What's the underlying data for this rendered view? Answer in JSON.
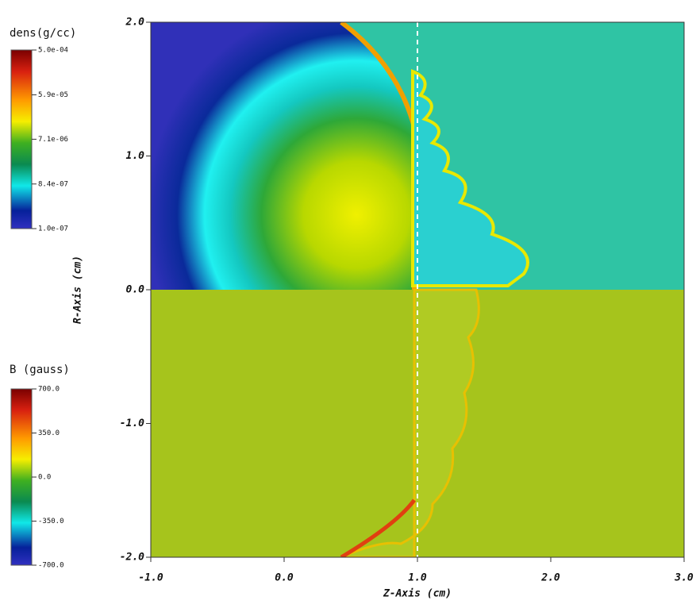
{
  "chart_data": {
    "type": "heatmap",
    "x_label": "Z-Axis (cm)",
    "y_label": "R-Axis (cm)",
    "xlim": [
      -1,
      3
    ],
    "ylim": [
      -2,
      2
    ],
    "xticks": [
      {
        "value": -1,
        "label": "-1.0"
      },
      {
        "value": 0,
        "label": "0.0"
      },
      {
        "value": 1,
        "label": "1.0"
      },
      {
        "value": 2,
        "label": "2.0"
      },
      {
        "value": 3,
        "label": "3.0"
      }
    ],
    "yticks": [
      {
        "value": -2,
        "label": "-2.0"
      },
      {
        "value": -1,
        "label": "-1.0"
      },
      {
        "value": 0,
        "label": "0.0"
      },
      {
        "value": 1,
        "label": "1.0"
      },
      {
        "value": 2,
        "label": "2.0"
      }
    ],
    "colorbars": [
      {
        "title": "dens(g/cc)",
        "log": true,
        "ticks": [
          {
            "value": 0.0005,
            "label": "5.0e-04"
          },
          {
            "value": 5.9e-05,
            "label": "5.9e-05"
          },
          {
            "value": 7.1e-06,
            "label": "7.1e-06"
          },
          {
            "value": 8.4e-07,
            "label": "8.4e-07"
          },
          {
            "value": 1e-07,
            "label": "1.0e-07"
          }
        ]
      },
      {
        "title": "B (gauss)",
        "log": false,
        "ticks": [
          {
            "value": 700,
            "label": "700.0"
          },
          {
            "value": 350,
            "label": "350.0"
          },
          {
            "value": 0,
            "label": "0.0"
          },
          {
            "value": -350,
            "label": "-350.0"
          },
          {
            "value": -700,
            "label": "-700.0"
          }
        ]
      }
    ]
  }
}
